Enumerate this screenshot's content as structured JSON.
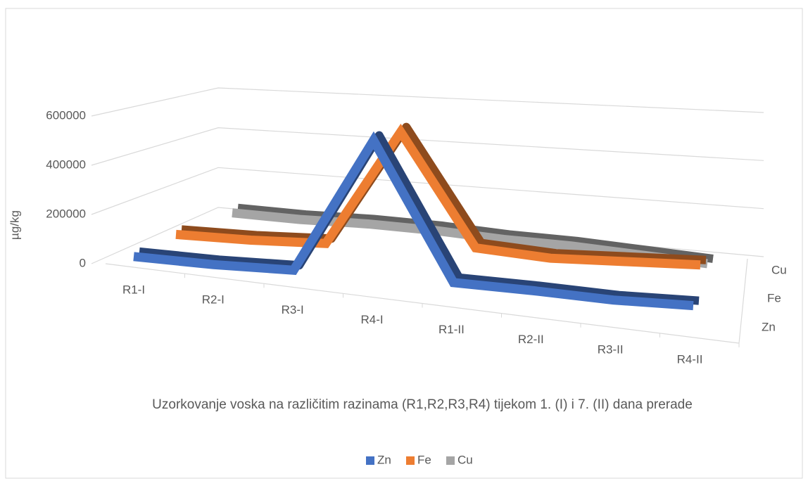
{
  "chart_data": {
    "type": "line3d",
    "y_label": "µg/kg",
    "x_label": "Uzorkovanje voska na različitim razinama (R1,R2,R3,R4) tijekom 1. (I) i 7. (II) dana prerade",
    "categories": [
      "R1-I",
      "R2-I",
      "R3-I",
      "R4-I",
      "R1-II",
      "R2-II",
      "R3-II",
      "R4-II"
    ],
    "series": [
      {
        "name": "Zn",
        "color": "#4472c4",
        "values": [
          20000,
          15000,
          20000,
          560000,
          25000,
          20000,
          10000,
          15000
        ]
      },
      {
        "name": "Fe",
        "color": "#ed7d31",
        "values": [
          20000,
          15000,
          20000,
          520000,
          40000,
          15000,
          20000,
          25000
        ]
      },
      {
        "name": "Cu",
        "color": "#a5a5a5",
        "values": [
          30000,
          30000,
          40000,
          40000,
          30000,
          30000,
          20000,
          10000
        ]
      }
    ],
    "ylim": [
      0,
      600000
    ],
    "yticks": [
      0,
      200000,
      400000,
      600000
    ],
    "grid": true,
    "legend": "bottom"
  }
}
